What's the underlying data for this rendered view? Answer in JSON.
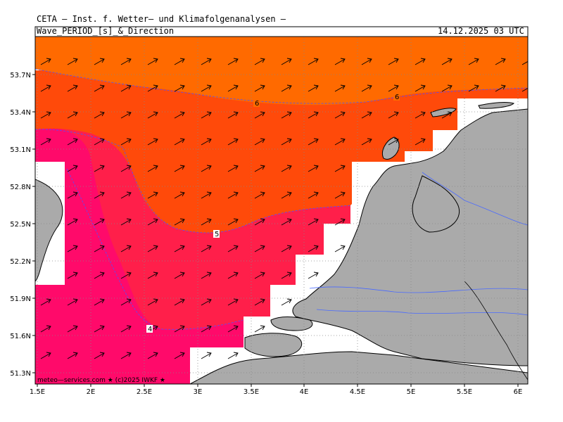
{
  "header": {
    "institute": "CETA — Inst. f. Wetter— und Klimafolgenanalysen —",
    "parameter": "Wave_PERIOD_[s]_&_Direction",
    "datetime": "14.12.2025 03 UTC"
  },
  "map": {
    "x_ticks": [
      "1.5E",
      "2E",
      "2.5E",
      "3E",
      "3.5E",
      "4E",
      "4.5E",
      "5E",
      "5.5E",
      "6E"
    ],
    "y_ticks": [
      "53.7N",
      "53.4N",
      "53.1N",
      "52.8N",
      "52.5N",
      "52.2N",
      "51.9N",
      "51.6N",
      "51.3N"
    ],
    "contour_labels": [
      "6",
      "6",
      "5",
      "4"
    ],
    "credit": "meteo—services.com ★ (c)2025 IWKF ★",
    "colors": {
      "period_6_plus": "#ff6a00",
      "period_5_6": "#ff4a0a",
      "period_4_5": "#ff1f4a",
      "period_below_4": "#ff0a6a",
      "land": "#aaaaaa",
      "rivers": "#4a6aff"
    },
    "arrow_direction": "north-east"
  }
}
